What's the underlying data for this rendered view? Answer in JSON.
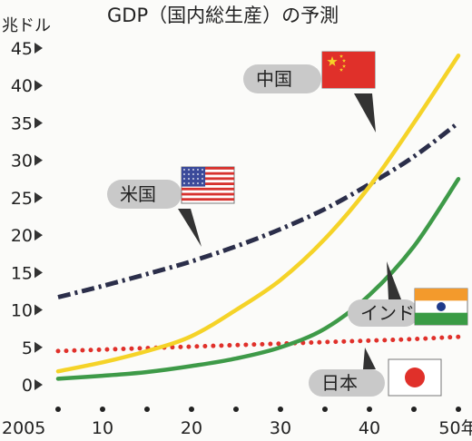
{
  "chart_data": {
    "type": "line",
    "title": "GDP（国内総生産）の予測",
    "unit_label": "兆ドル",
    "ylim": [
      0,
      45
    ],
    "yticks": [
      0,
      5,
      10,
      15,
      20,
      25,
      30,
      35,
      40,
      45
    ],
    "xlim": [
      2005,
      2050
    ],
    "xticks": [
      {
        "value": 2005,
        "label": "2005"
      },
      {
        "value": 2010,
        "label": "10"
      },
      {
        "value": 2020,
        "label": "20"
      },
      {
        "value": 2030,
        "label": "30"
      },
      {
        "value": 2040,
        "label": "40"
      },
      {
        "value": 2050,
        "label": "50年"
      }
    ],
    "x_dot_years": [
      2005,
      2010,
      2015,
      2020,
      2025,
      2030,
      2035,
      2040,
      2045,
      2050
    ],
    "grid": false,
    "series": [
      {
        "name": "中国",
        "color": "#f5d328",
        "style": "solid",
        "x": [
          2005,
          2010,
          2015,
          2020,
          2025,
          2030,
          2035,
          2040,
          2045,
          2050
        ],
        "values": [
          1.8,
          3.0,
          4.5,
          6.5,
          10.0,
          14.0,
          19.5,
          26.5,
          35.0,
          44.0
        ]
      },
      {
        "name": "米国",
        "color": "#2b2e4a",
        "style": "dashdot",
        "x": [
          2005,
          2010,
          2015,
          2020,
          2025,
          2030,
          2035,
          2040,
          2045,
          2050
        ],
        "values": [
          11.7,
          13.2,
          14.8,
          16.5,
          18.5,
          20.8,
          23.5,
          26.8,
          30.5,
          35.0
        ]
      },
      {
        "name": "インド",
        "color": "#3e9a48",
        "style": "solid",
        "x": [
          2005,
          2010,
          2015,
          2020,
          2025,
          2030,
          2035,
          2040,
          2045,
          2050
        ],
        "values": [
          0.8,
          1.2,
          1.7,
          2.5,
          3.5,
          5.0,
          7.5,
          12.0,
          18.5,
          27.5
        ]
      },
      {
        "name": "日本",
        "color": "#e0302a",
        "style": "dotted",
        "x": [
          2005,
          2010,
          2015,
          2020,
          2025,
          2030,
          2035,
          2040,
          2045,
          2050
        ],
        "values": [
          4.5,
          4.7,
          4.9,
          5.1,
          5.3,
          5.5,
          5.7,
          5.9,
          6.1,
          6.4
        ]
      }
    ]
  },
  "callouts": [
    {
      "label": "中国",
      "flag": "china-flag",
      "series": 0
    },
    {
      "label": "米国",
      "flag": "usa-flag",
      "series": 1
    },
    {
      "label": "インド",
      "flag": "india-flag",
      "series": 2
    },
    {
      "label": "日本",
      "flag": "japan-flag",
      "series": 3
    }
  ],
  "colors": {
    "callout_bg": "#c9c9c9",
    "axis_marker": "#333333",
    "background": "#fbfbf9"
  }
}
